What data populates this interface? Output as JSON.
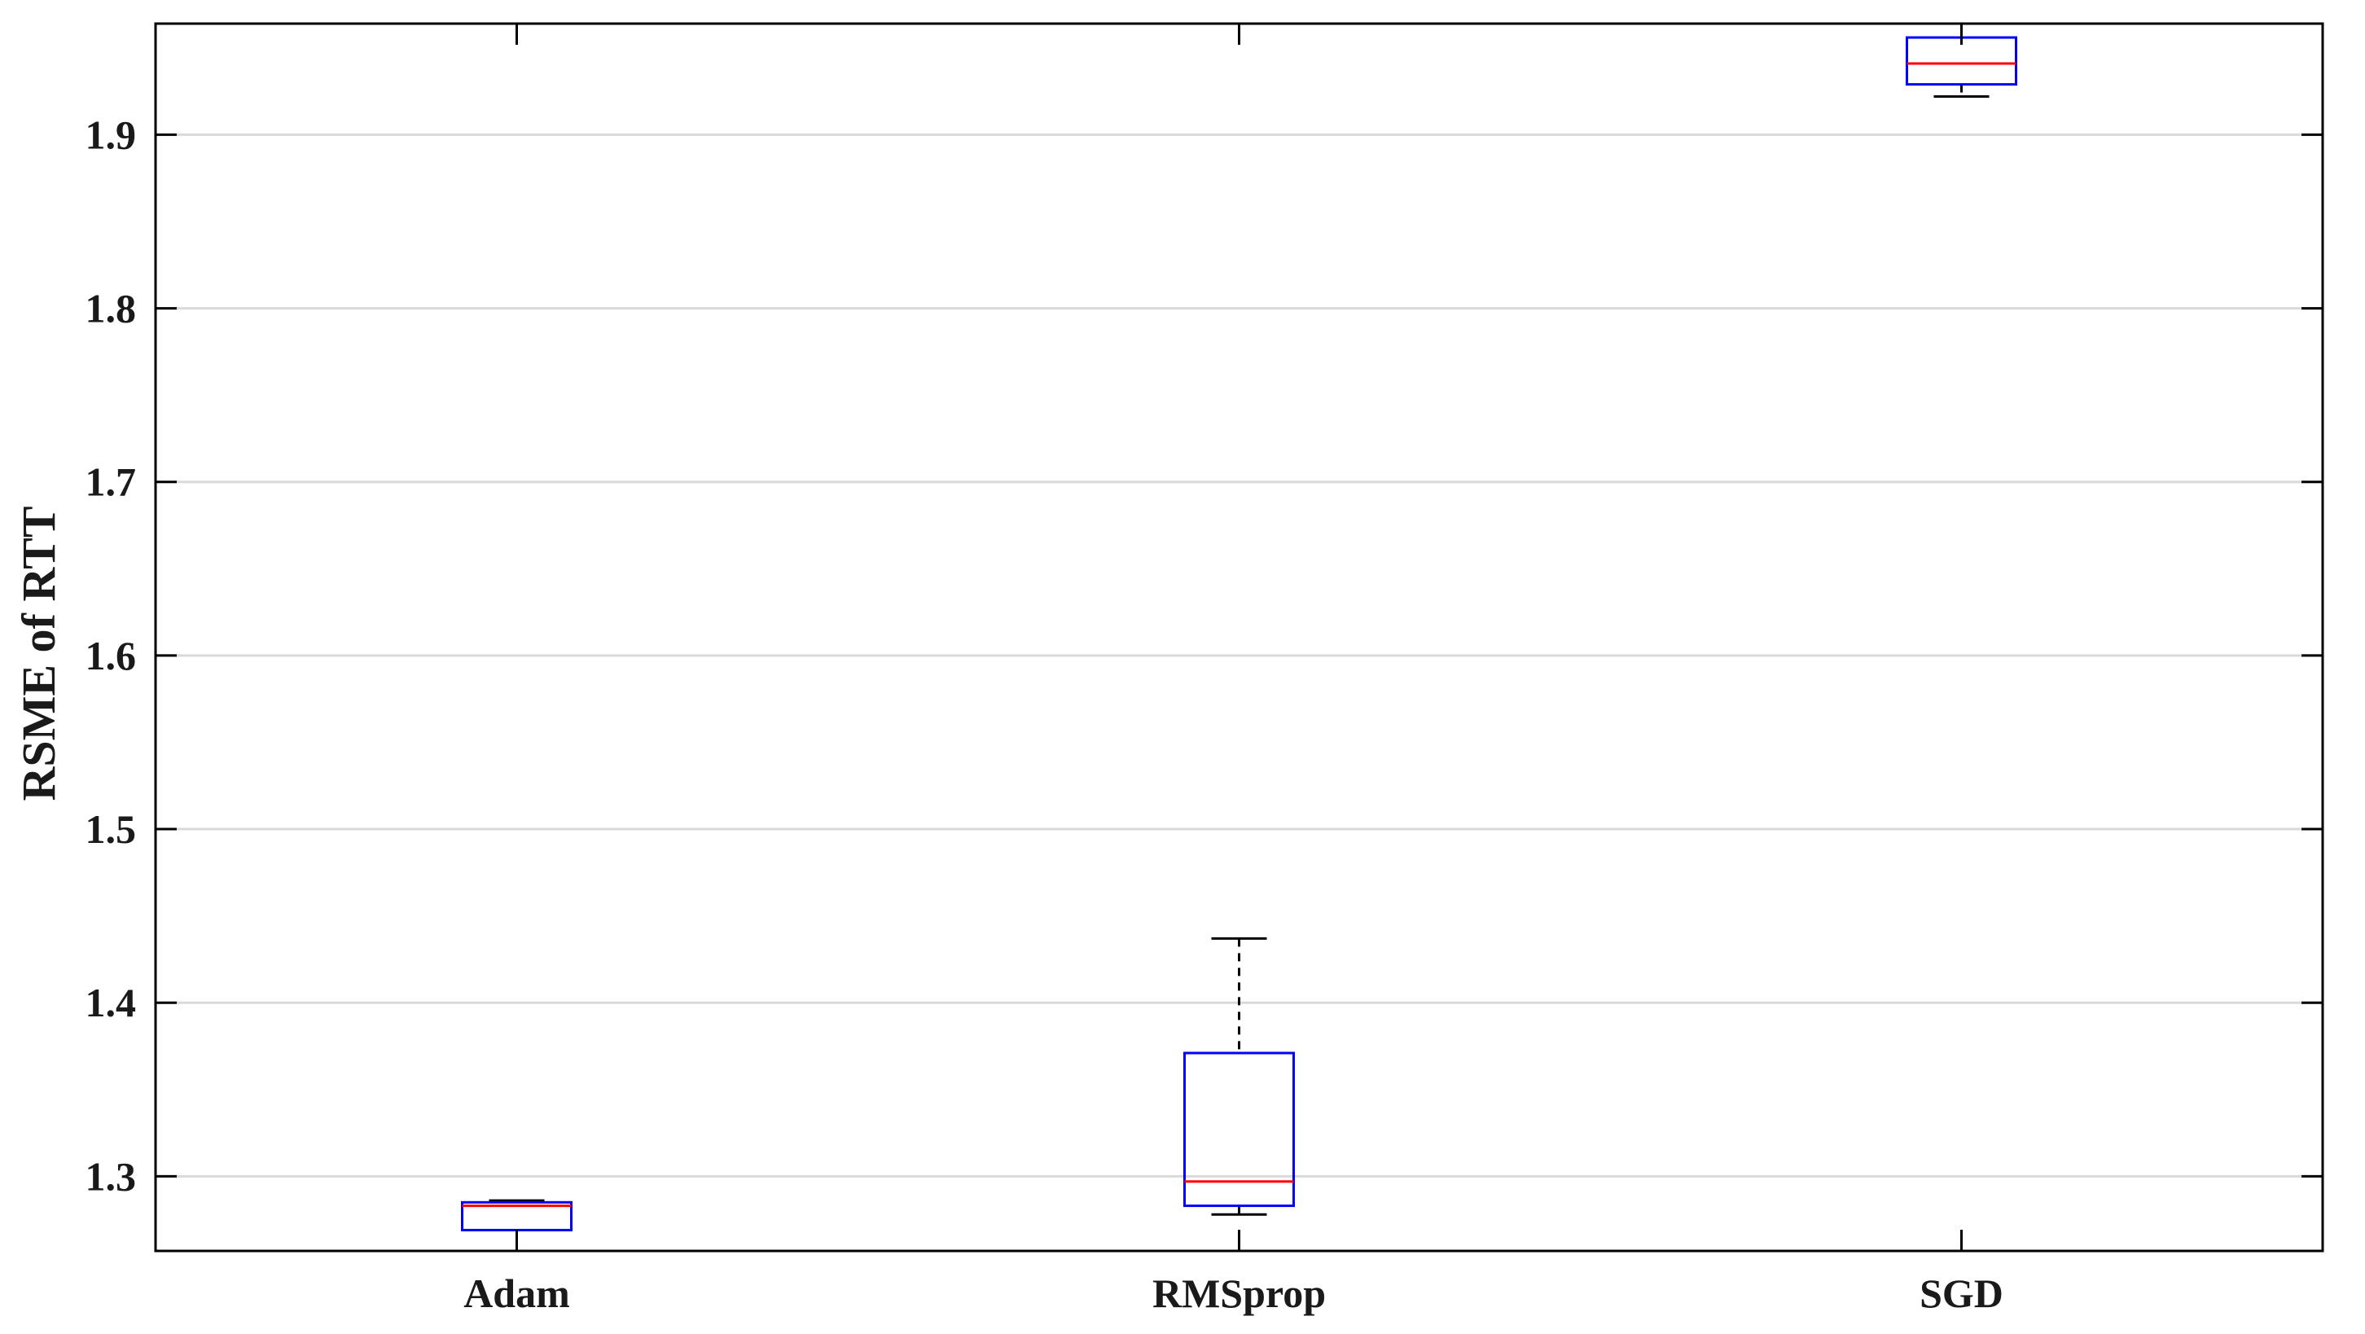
{
  "chart_data": {
    "type": "box",
    "title": "",
    "xlabel": "",
    "ylabel": "RSME of RTT",
    "categories": [
      "Adam",
      "RMSprop",
      "SGD"
    ],
    "yticks": [
      1.3,
      1.4,
      1.5,
      1.6,
      1.7,
      1.8,
      1.9
    ],
    "ytick_labels": [
      "1.3",
      "1.4",
      "1.5",
      "1.6",
      "1.7",
      "1.8",
      "1.9"
    ],
    "ylim": [
      1.257,
      1.964
    ],
    "grid": true,
    "boxes": [
      {
        "category": "Adam",
        "whisker_low": 1.257,
        "q1": 1.269,
        "median": 1.283,
        "q3": 1.285,
        "whisker_high": 1.286
      },
      {
        "category": "RMSprop",
        "whisker_low": 1.278,
        "q1": 1.283,
        "median": 1.297,
        "q3": 1.371,
        "whisker_high": 1.437
      },
      {
        "category": "SGD",
        "whisker_low": 1.922,
        "q1": 1.929,
        "median": 1.941,
        "q3": 1.956,
        "whisker_high": 1.964
      }
    ],
    "colors": {
      "box": "#0000ff",
      "median": "#ff0000",
      "whisker": "#000000",
      "grid": "#d9d9d9",
      "axis": "#000000"
    }
  }
}
